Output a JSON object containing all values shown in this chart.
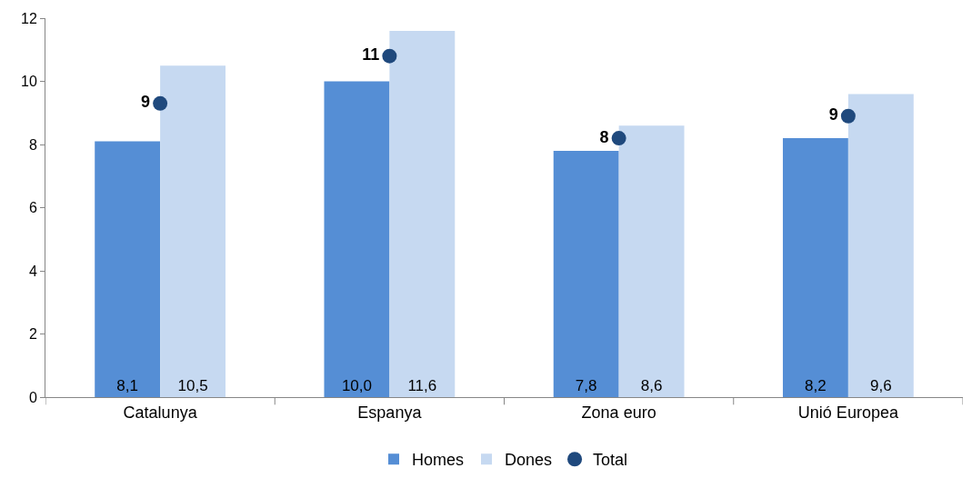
{
  "chart_data": {
    "type": "bar",
    "categories": [
      "Catalunya",
      "Espanya",
      "Zona euro",
      "Unió Europea"
    ],
    "series": [
      {
        "name": "Homes",
        "color": "#558ed5",
        "values": [
          8.1,
          10.0,
          7.8,
          8.2
        ],
        "value_labels": [
          "8,1",
          "10,0",
          "7,8",
          "8,2"
        ]
      },
      {
        "name": "Dones",
        "color": "#c6d9f1",
        "values": [
          10.5,
          11.6,
          8.6,
          9.6
        ],
        "value_labels": [
          "10,5",
          "11,6",
          "8,6",
          "9,6"
        ]
      },
      {
        "name": "Total",
        "type": "scatter",
        "marker": "circle",
        "color": "#1f497d",
        "values": [
          9.3,
          10.8,
          8.2,
          8.9
        ],
        "value_labels": [
          "9",
          "11",
          "8",
          "9"
        ]
      }
    ],
    "ylim": [
      0,
      12
    ],
    "yticks": [
      0,
      2,
      4,
      6,
      8,
      10,
      12
    ],
    "legend": "bottom"
  }
}
